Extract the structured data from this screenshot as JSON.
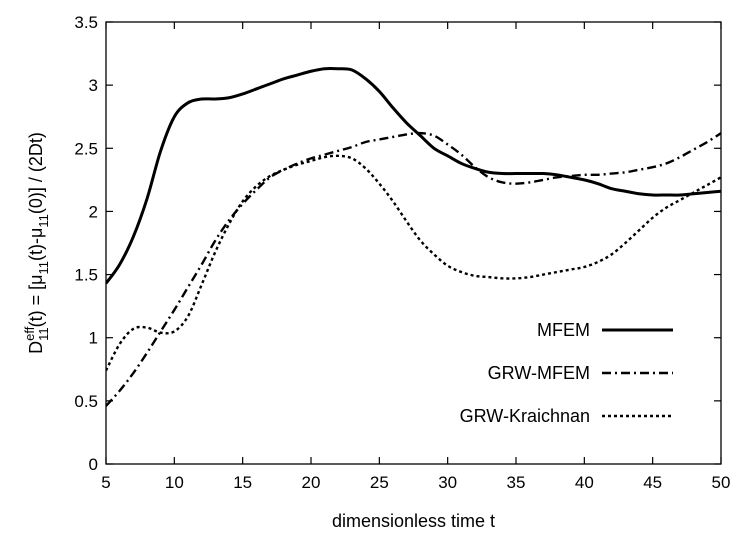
{
  "chart_data": {
    "type": "line",
    "title": "",
    "xlabel": "dimensionless time t",
    "ylabel_parts": {
      "base": "D",
      "superscript": "eff",
      "subscript": "11",
      "arg": "(t) = [μ",
      "sub1": "11",
      "mid": "(t)-μ",
      "sub2": "11",
      "tail": "(0)] / (2Dt)"
    },
    "xlim": [
      5,
      50
    ],
    "ylim": [
      0,
      3.5
    ],
    "xticks": [
      5,
      10,
      15,
      20,
      25,
      30,
      35,
      40,
      45,
      50
    ],
    "xtick_labels": [
      "5",
      "10",
      "15",
      "20",
      "25",
      "30",
      "35",
      "40",
      "45",
      "50"
    ],
    "yticks": [
      0,
      0.5,
      1,
      1.5,
      2,
      2.5,
      3,
      3.5
    ],
    "ytick_labels": [
      "0",
      "0.5",
      "1",
      "1.5",
      "2",
      "2.5",
      "3",
      "3.5"
    ],
    "legend_position": "right",
    "series": [
      {
        "name": "MFEM",
        "style": "solid",
        "x": [
          5,
          6,
          7,
          8,
          9,
          10,
          11,
          12,
          13,
          14,
          15,
          16,
          17,
          18,
          19,
          20,
          21,
          22,
          23,
          24,
          25,
          26,
          27,
          28,
          29,
          30,
          31,
          32,
          33,
          34,
          35,
          36,
          37,
          38,
          39,
          40,
          41,
          42,
          43,
          44,
          45,
          46,
          47,
          48,
          49,
          50
        ],
        "y": [
          1.43,
          1.58,
          1.8,
          2.1,
          2.48,
          2.75,
          2.86,
          2.89,
          2.89,
          2.9,
          2.93,
          2.97,
          3.01,
          3.05,
          3.08,
          3.11,
          3.13,
          3.13,
          3.12,
          3.05,
          2.95,
          2.82,
          2.7,
          2.6,
          2.5,
          2.44,
          2.38,
          2.34,
          2.31,
          2.3,
          2.3,
          2.3,
          2.3,
          2.29,
          2.27,
          2.25,
          2.22,
          2.18,
          2.16,
          2.14,
          2.13,
          2.13,
          2.13,
          2.14,
          2.15,
          2.16
        ]
      },
      {
        "name": "GRW-MFEM",
        "style": "dashdot",
        "x": [
          5,
          6,
          7,
          8,
          9,
          10,
          11,
          12,
          13,
          14,
          15,
          16,
          17,
          18,
          19,
          20,
          21,
          22,
          23,
          24,
          25,
          26,
          27,
          28,
          29,
          30,
          31,
          32,
          33,
          34,
          35,
          36,
          37,
          38,
          39,
          40,
          41,
          42,
          43,
          44,
          45,
          46,
          47,
          48,
          49,
          50
        ],
        "y": [
          0.46,
          0.58,
          0.72,
          0.88,
          1.05,
          1.22,
          1.4,
          1.58,
          1.77,
          1.93,
          2.06,
          2.17,
          2.27,
          2.33,
          2.38,
          2.42,
          2.45,
          2.48,
          2.51,
          2.55,
          2.57,
          2.59,
          2.61,
          2.62,
          2.6,
          2.53,
          2.45,
          2.35,
          2.27,
          2.23,
          2.22,
          2.23,
          2.25,
          2.27,
          2.28,
          2.29,
          2.29,
          2.3,
          2.31,
          2.33,
          2.35,
          2.38,
          2.43,
          2.49,
          2.55,
          2.62
        ]
      },
      {
        "name": "GRW-Kraichnan",
        "style": "dotted",
        "x": [
          5,
          6,
          7,
          8,
          9,
          10,
          11,
          12,
          13,
          14,
          15,
          16,
          17,
          18,
          19,
          20,
          21,
          22,
          23,
          24,
          25,
          26,
          27,
          28,
          29,
          30,
          31,
          32,
          33,
          34,
          35,
          36,
          37,
          38,
          39,
          40,
          41,
          42,
          43,
          44,
          45,
          46,
          47,
          48,
          49,
          50
        ],
        "y": [
          0.74,
          0.95,
          1.07,
          1.08,
          1.04,
          1.05,
          1.17,
          1.42,
          1.68,
          1.9,
          2.08,
          2.2,
          2.28,
          2.33,
          2.37,
          2.4,
          2.43,
          2.44,
          2.42,
          2.34,
          2.22,
          2.08,
          1.92,
          1.77,
          1.66,
          1.57,
          1.52,
          1.49,
          1.48,
          1.47,
          1.47,
          1.48,
          1.5,
          1.52,
          1.54,
          1.56,
          1.6,
          1.66,
          1.75,
          1.85,
          1.95,
          2.03,
          2.09,
          2.15,
          2.21,
          2.27
        ]
      }
    ]
  }
}
